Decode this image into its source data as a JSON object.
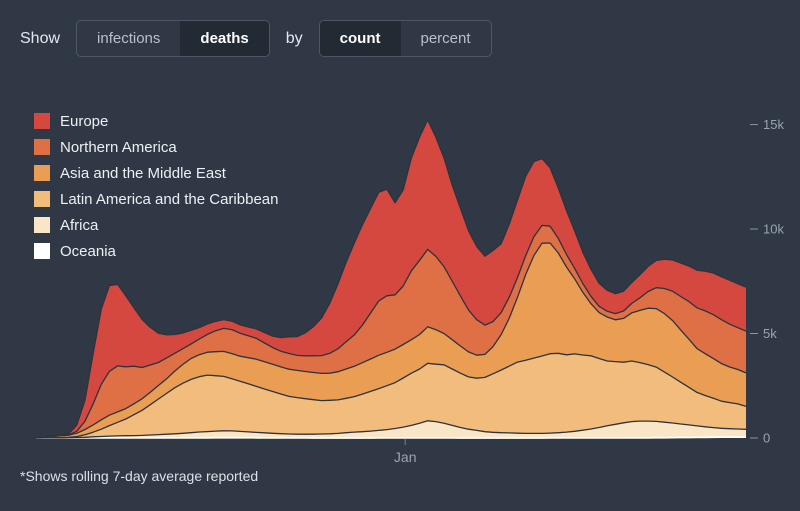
{
  "page": {
    "background": "#2f3844"
  },
  "controls": {
    "show_label": "Show",
    "by_label": "by",
    "metric_toggle": {
      "options": [
        "infections",
        "deaths"
      ],
      "selected": "deaths"
    },
    "mode_toggle": {
      "options": [
        "count",
        "percent"
      ],
      "selected": "count"
    }
  },
  "legend": {
    "items": [
      {
        "label": "Europe",
        "color": "#d5483f"
      },
      {
        "label": "Northern America",
        "color": "#df7046"
      },
      {
        "label": "Asia and the Middle East",
        "color": "#ea9e54"
      },
      {
        "label": "Latin America and the Caribbean",
        "color": "#f2bd7c"
      },
      {
        "label": "Africa",
        "color": "#f8e6c6"
      },
      {
        "label": "Oceania",
        "color": "#ffffff"
      }
    ]
  },
  "footnote": "*Shows rolling 7-day average reported",
  "chart_data": {
    "type": "area",
    "stacked": true,
    "metric": "deaths",
    "mode": "count",
    "title": "",
    "xlabel": "",
    "ylabel": "",
    "ylim": [
      0,
      15600
    ],
    "grid": false,
    "legend_position": "top-left",
    "outline_color": "#2d333e",
    "y_ticks": [
      {
        "value": 0,
        "label": "0"
      },
      {
        "value": 5000,
        "label": "5k"
      },
      {
        "value": 10000,
        "label": "10k"
      },
      {
        "value": 15000,
        "label": "15k"
      }
    ],
    "x_ticks": [
      {
        "label": "Jan",
        "position": 0.52
      }
    ],
    "series_order": "bottom-to-top",
    "series": [
      {
        "name": "Oceania",
        "color": "#ffffff",
        "values": [
          0,
          1,
          1,
          2,
          2,
          3,
          5,
          8,
          10,
          12,
          10,
          8,
          6,
          5,
          4,
          4,
          3,
          3,
          3,
          4,
          5,
          8,
          12,
          16,
          18,
          16,
          12,
          9,
          7,
          5,
          4,
          3,
          3,
          3,
          2,
          2,
          2,
          2,
          2,
          2,
          2,
          2,
          3,
          3,
          3,
          3,
          3,
          3,
          3,
          3,
          3,
          3,
          2,
          2,
          2,
          2,
          2,
          2,
          2,
          2,
          2,
          2,
          2,
          3,
          3,
          3,
          3,
          3,
          3,
          3,
          4,
          4,
          5,
          6,
          8,
          10,
          12,
          15,
          18,
          22,
          26,
          30,
          34,
          38,
          42,
          46,
          50,
          54
        ]
      },
      {
        "name": "Africa",
        "color": "#f8e6c6",
        "values": [
          2,
          3,
          5,
          8,
          10,
          20,
          30,
          50,
          60,
          80,
          90,
          100,
          110,
          120,
          140,
          160,
          180,
          200,
          220,
          250,
          280,
          300,
          320,
          330,
          320,
          300,
          280,
          260,
          240,
          220,
          200,
          190,
          180,
          180,
          180,
          190,
          200,
          220,
          250,
          280,
          300,
          330,
          360,
          400,
          450,
          520,
          600,
          700,
          820,
          780,
          700,
          600,
          500,
          420,
          360,
          300,
          270,
          250,
          240,
          230,
          220,
          220,
          220,
          230,
          250,
          280,
          320,
          370,
          430,
          500,
          580,
          650,
          720,
          780,
          800,
          800,
          780,
          740,
          700,
          650,
          600,
          550,
          500,
          460,
          420,
          400,
          380,
          360
        ]
      },
      {
        "name": "Latin America and the Caribbean",
        "color": "#f2bd7c",
        "values": [
          0,
          0,
          5,
          10,
          20,
          50,
          120,
          220,
          350,
          500,
          650,
          800,
          1000,
          1200,
          1450,
          1700,
          1950,
          2200,
          2400,
          2550,
          2650,
          2700,
          2650,
          2600,
          2500,
          2400,
          2300,
          2200,
          2100,
          2000,
          1900,
          1800,
          1750,
          1700,
          1650,
          1600,
          1600,
          1600,
          1650,
          1700,
          1800,
          1900,
          2000,
          2100,
          2200,
          2350,
          2500,
          2600,
          2750,
          2750,
          2800,
          2700,
          2600,
          2500,
          2500,
          2600,
          2800,
          3000,
          3200,
          3400,
          3500,
          3600,
          3700,
          3800,
          3800,
          3700,
          3700,
          3600,
          3500,
          3300,
          3100,
          3000,
          2900,
          2900,
          2800,
          2700,
          2600,
          2400,
          2200,
          2000,
          1800,
          1600,
          1500,
          1400,
          1300,
          1250,
          1200,
          1100
        ]
      },
      {
        "name": "Asia and the Middle East",
        "color": "#ea9e54",
        "values": [
          30,
          40,
          60,
          80,
          100,
          150,
          250,
          350,
          450,
          500,
          500,
          500,
          520,
          550,
          600,
          650,
          700,
          800,
          900,
          1000,
          1050,
          1100,
          1150,
          1200,
          1200,
          1200,
          1250,
          1300,
          1300,
          1300,
          1300,
          1300,
          1300,
          1300,
          1300,
          1300,
          1300,
          1350,
          1400,
          1450,
          1500,
          1550,
          1600,
          1600,
          1600,
          1600,
          1600,
          1650,
          1750,
          1650,
          1500,
          1400,
          1300,
          1200,
          1100,
          1100,
          1300,
          1700,
          2300,
          3100,
          4100,
          4900,
          5400,
          5300,
          4800,
          4200,
          3600,
          3000,
          2500,
          2200,
          2100,
          2000,
          2100,
          2300,
          2500,
          2700,
          2800,
          2800,
          2700,
          2500,
          2300,
          2100,
          2000,
          1900,
          1800,
          1700,
          1650,
          1600
        ]
      },
      {
        "name": "Northern America",
        "color": "#df7046",
        "values": [
          2,
          3,
          5,
          10,
          20,
          100,
          400,
          1000,
          1700,
          2100,
          2200,
          2000,
          1800,
          1500,
          1300,
          1100,
          1000,
          850,
          750,
          700,
          750,
          850,
          1000,
          1100,
          1150,
          1100,
          1050,
          1000,
          900,
          800,
          750,
          750,
          720,
          750,
          800,
          850,
          950,
          1100,
          1300,
          1500,
          1800,
          2200,
          2600,
          2700,
          2600,
          2800,
          3300,
          3550,
          3700,
          3500,
          3200,
          2800,
          2400,
          2000,
          1700,
          1400,
          1200,
          1050,
          1000,
          950,
          900,
          900,
          850,
          800,
          700,
          600,
          500,
          420,
          350,
          300,
          280,
          300,
          350,
          450,
          600,
          800,
          1000,
          1200,
          1400,
          1600,
          1800,
          1950,
          2050,
          2100,
          2100,
          2050,
          2000,
          2000
        ]
      },
      {
        "name": "Europe",
        "color": "#d5483f",
        "values": [
          5,
          10,
          20,
          30,
          50,
          300,
          1000,
          2400,
          3600,
          4100,
          3900,
          3400,
          2800,
          2300,
          1800,
          1400,
          1100,
          900,
          750,
          650,
          550,
          500,
          450,
          420,
          400,
          400,
          420,
          450,
          500,
          550,
          650,
          800,
          900,
          1100,
          1400,
          1800,
          2400,
          3100,
          3800,
          4400,
          4800,
          5000,
          5200,
          5100,
          4400,
          4600,
          5400,
          5900,
          6200,
          5700,
          5200,
          4600,
          4200,
          3800,
          3500,
          3300,
          3400,
          3300,
          3500,
          3700,
          3800,
          3600,
          3200,
          2800,
          2400,
          2100,
          1800,
          1500,
          1300,
          1100,
          1000,
          950,
          950,
          1000,
          1100,
          1200,
          1300,
          1400,
          1500,
          1600,
          1700,
          1800,
          1900,
          2000,
          2050,
          2100,
          2100,
          2100
        ]
      }
    ]
  }
}
